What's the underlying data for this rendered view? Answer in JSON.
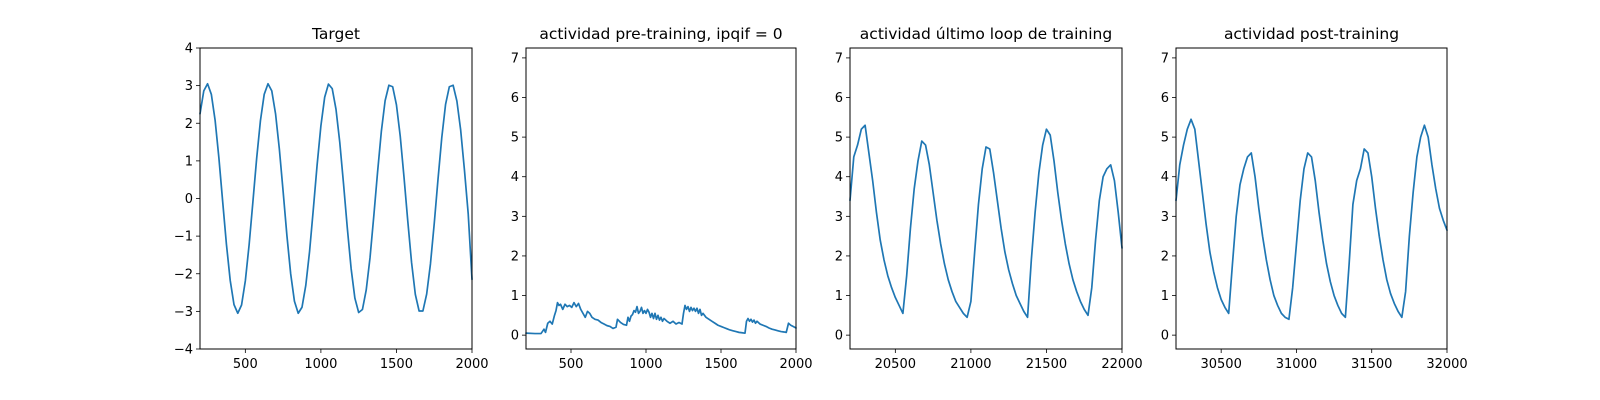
{
  "figure": {
    "line_color": "#1f77b4"
  },
  "chart_data": [
    {
      "type": "line",
      "title": "Target",
      "xlabel": "",
      "ylabel": "",
      "xlim": [
        200,
        2000
      ],
      "ylim": [
        -4,
        4
      ],
      "xticks": [
        500,
        1000,
        1500,
        2000
      ],
      "yticks": [
        -4,
        -3,
        -2,
        -1,
        0,
        1,
        2,
        3,
        4
      ],
      "grid": false,
      "series": [
        {
          "x": [
            200,
            225,
            250,
            275,
            300,
            325,
            350,
            375,
            400,
            425,
            450,
            475,
            500,
            525,
            550,
            575,
            600,
            625,
            650,
            675,
            700,
            725,
            750,
            775,
            800,
            825,
            850,
            875,
            900,
            925,
            950,
            975,
            1000,
            1025,
            1050,
            1075,
            1100,
            1125,
            1150,
            1175,
            1200,
            1225,
            1250,
            1275,
            1300,
            1325,
            1350,
            1375,
            1400,
            1425,
            1450,
            1475,
            1500,
            1525,
            1550,
            1575,
            1600,
            1625,
            1650,
            1675,
            1700,
            1725,
            1750,
            1775,
            1800,
            1825,
            1850,
            1875,
            1900,
            1925,
            1950,
            1975,
            2000
          ],
          "y": [
            2.25,
            2.86,
            3.05,
            2.77,
            2.08,
            1.08,
            -0.08,
            -1.22,
            -2.18,
            -2.82,
            -3.05,
            -2.83,
            -2.19,
            -1.23,
            -0.09,
            1.07,
            2.07,
            2.77,
            3.05,
            2.86,
            2.25,
            1.32,
            0.19,
            -0.98,
            -2.0,
            -2.73,
            -3.05,
            -2.89,
            -2.31,
            -1.41,
            -0.28,
            0.89,
            1.93,
            2.69,
            3.04,
            2.92,
            2.37,
            1.49,
            0.38,
            -0.79,
            -1.86,
            -2.65,
            -3.03,
            -2.95,
            -2.43,
            -1.58,
            -0.47,
            0.7,
            1.78,
            2.6,
            3.01,
            2.97,
            2.49,
            1.66,
            0.57,
            -0.6,
            -1.7,
            -2.55,
            -2.99,
            -2.99,
            -2.54,
            -1.74,
            -0.67,
            0.51,
            1.62,
            2.5,
            2.97,
            3.01,
            2.59,
            1.82,
            0.76,
            -0.41,
            -2.15
          ]
        }
      ]
    },
    {
      "type": "line",
      "title": "actividad pre-training, ipqif = 0",
      "xlabel": "",
      "ylabel": "",
      "xlim": [
        200,
        2000
      ],
      "ylim": [
        -0.35,
        7.25
      ],
      "xticks": [
        500,
        1000,
        1500,
        2000
      ],
      "yticks": [
        0,
        1,
        2,
        3,
        4,
        5,
        6,
        7
      ],
      "grid": false,
      "series": [
        {
          "x": [
            200,
            260,
            300,
            320,
            330,
            345,
            360,
            375,
            390,
            400,
            410,
            420,
            430,
            445,
            460,
            475,
            490,
            505,
            520,
            535,
            550,
            565,
            580,
            595,
            610,
            625,
            640,
            660,
            680,
            700,
            720,
            740,
            760,
            780,
            800,
            810,
            830,
            850,
            870,
            880,
            890,
            900,
            910,
            920,
            930,
            940,
            950,
            960,
            970,
            980,
            990,
            1000,
            1010,
            1020,
            1030,
            1040,
            1050,
            1060,
            1070,
            1080,
            1090,
            1100,
            1110,
            1120,
            1140,
            1160,
            1180,
            1200,
            1220,
            1240,
            1250,
            1260,
            1270,
            1280,
            1290,
            1300,
            1310,
            1320,
            1330,
            1340,
            1350,
            1360,
            1370,
            1380,
            1400,
            1420,
            1440,
            1460,
            1480,
            1500,
            1520,
            1540,
            1560,
            1580,
            1600,
            1620,
            1640,
            1660,
            1670,
            1680,
            1690,
            1700,
            1710,
            1720,
            1730,
            1740,
            1760,
            1780,
            1800,
            1820,
            1840,
            1860,
            1880,
            1900,
            1920,
            1935,
            1950,
            1965,
            1980,
            2000
          ],
          "y": [
            0.05,
            0.04,
            0.04,
            0.15,
            0.07,
            0.3,
            0.35,
            0.28,
            0.5,
            0.62,
            0.82,
            0.75,
            0.78,
            0.65,
            0.78,
            0.72,
            0.75,
            0.7,
            0.82,
            0.72,
            0.8,
            0.65,
            0.55,
            0.45,
            0.6,
            0.55,
            0.45,
            0.4,
            0.38,
            0.32,
            0.28,
            0.24,
            0.22,
            0.17,
            0.2,
            0.4,
            0.32,
            0.27,
            0.25,
            0.45,
            0.35,
            0.48,
            0.52,
            0.62,
            0.58,
            0.72,
            0.55,
            0.6,
            0.7,
            0.55,
            0.62,
            0.55,
            0.65,
            0.58,
            0.45,
            0.55,
            0.42,
            0.55,
            0.4,
            0.5,
            0.38,
            0.45,
            0.35,
            0.42,
            0.35,
            0.3,
            0.35,
            0.28,
            0.32,
            0.28,
            0.55,
            0.75,
            0.65,
            0.72,
            0.6,
            0.7,
            0.62,
            0.68,
            0.6,
            0.68,
            0.55,
            0.65,
            0.5,
            0.55,
            0.45,
            0.4,
            0.35,
            0.3,
            0.25,
            0.22,
            0.19,
            0.16,
            0.13,
            0.11,
            0.09,
            0.07,
            0.06,
            0.05,
            0.35,
            0.42,
            0.35,
            0.4,
            0.33,
            0.38,
            0.3,
            0.35,
            0.28,
            0.25,
            0.22,
            0.18,
            0.15,
            0.13,
            0.11,
            0.09,
            0.08,
            0.07,
            0.3,
            0.25,
            0.22,
            0.18
          ]
        }
      ]
    },
    {
      "type": "line",
      "title": "actividad último loop de training",
      "xlabel": "",
      "ylabel": "",
      "xlim": [
        20200,
        22000
      ],
      "ylim": [
        -0.35,
        7.25
      ],
      "xticks": [
        20500,
        21000,
        21500,
        22000
      ],
      "yticks": [
        0,
        1,
        2,
        3,
        4,
        5,
        6,
        7
      ],
      "grid": false,
      "series": [
        {
          "x": [
            20200,
            20225,
            20250,
            20275,
            20300,
            20325,
            20350,
            20375,
            20400,
            20425,
            20450,
            20475,
            20500,
            20525,
            20550,
            20575,
            20600,
            20625,
            20650,
            20675,
            20700,
            20725,
            20750,
            20775,
            20800,
            20825,
            20850,
            20875,
            20900,
            20925,
            20950,
            20975,
            21000,
            21025,
            21050,
            21075,
            21100,
            21125,
            21150,
            21175,
            21200,
            21225,
            21250,
            21275,
            21300,
            21325,
            21350,
            21375,
            21400,
            21425,
            21450,
            21475,
            21500,
            21525,
            21550,
            21575,
            21600,
            21625,
            21650,
            21675,
            21700,
            21725,
            21750,
            21775,
            21800,
            21825,
            21850,
            21875,
            21900,
            21925,
            21950,
            21975,
            22000
          ],
          "y": [
            3.4,
            4.5,
            4.8,
            5.2,
            5.3,
            4.6,
            3.9,
            3.1,
            2.4,
            1.9,
            1.5,
            1.2,
            0.95,
            0.75,
            0.55,
            1.5,
            2.7,
            3.7,
            4.4,
            4.9,
            4.8,
            4.3,
            3.6,
            2.9,
            2.3,
            1.8,
            1.4,
            1.1,
            0.85,
            0.7,
            0.55,
            0.45,
            0.85,
            2.1,
            3.3,
            4.2,
            4.75,
            4.7,
            4.1,
            3.4,
            2.7,
            2.1,
            1.65,
            1.3,
            1.0,
            0.8,
            0.6,
            0.45,
            1.9,
            3.1,
            4.1,
            4.8,
            5.2,
            5.05,
            4.4,
            3.6,
            2.9,
            2.3,
            1.8,
            1.4,
            1.1,
            0.85,
            0.65,
            0.5,
            1.2,
            2.4,
            3.4,
            4.0,
            4.2,
            4.3,
            3.9,
            3.1,
            2.2
          ]
        }
      ]
    },
    {
      "type": "line",
      "title": "actividad post-training",
      "xlabel": "",
      "ylabel": "",
      "xlim": [
        30200,
        32000
      ],
      "ylim": [
        -0.35,
        7.25
      ],
      "xticks": [
        30500,
        31000,
        31500,
        32000
      ],
      "yticks": [
        0,
        1,
        2,
        3,
        4,
        5,
        6,
        7
      ],
      "grid": false,
      "series": [
        {
          "x": [
            30200,
            30225,
            30250,
            30275,
            30300,
            30325,
            30350,
            30375,
            30400,
            30425,
            30450,
            30475,
            30500,
            30525,
            30550,
            30575,
            30600,
            30625,
            30650,
            30675,
            30700,
            30725,
            30750,
            30775,
            30800,
            30825,
            30850,
            30875,
            30900,
            30925,
            30950,
            30975,
            31000,
            31025,
            31050,
            31075,
            31100,
            31125,
            31150,
            31175,
            31200,
            31225,
            31250,
            31275,
            31300,
            31325,
            31350,
            31375,
            31400,
            31425,
            31450,
            31475,
            31500,
            31525,
            31550,
            31575,
            31600,
            31625,
            31650,
            31675,
            31700,
            31725,
            31750,
            31775,
            31800,
            31825,
            31850,
            31875,
            31900,
            31925,
            31950,
            31975,
            32000
          ],
          "y": [
            3.4,
            4.3,
            4.8,
            5.2,
            5.45,
            5.2,
            4.4,
            3.6,
            2.8,
            2.1,
            1.6,
            1.2,
            0.9,
            0.7,
            0.55,
            1.8,
            3.0,
            3.8,
            4.2,
            4.5,
            4.6,
            4.0,
            3.2,
            2.5,
            1.9,
            1.4,
            1.0,
            0.75,
            0.55,
            0.45,
            0.4,
            1.2,
            2.3,
            3.4,
            4.2,
            4.6,
            4.5,
            3.9,
            3.1,
            2.4,
            1.8,
            1.35,
            1.0,
            0.75,
            0.55,
            0.45,
            1.8,
            3.3,
            3.9,
            4.2,
            4.7,
            4.6,
            4.0,
            3.2,
            2.5,
            1.9,
            1.4,
            1.05,
            0.8,
            0.6,
            0.45,
            1.1,
            2.5,
            3.6,
            4.5,
            5.0,
            5.3,
            5.0,
            4.3,
            3.7,
            3.2,
            2.9,
            2.65
          ]
        }
      ]
    }
  ]
}
